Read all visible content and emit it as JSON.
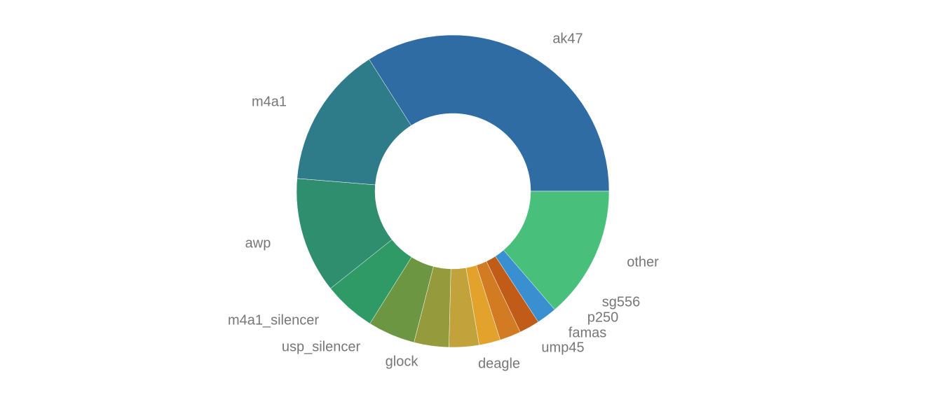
{
  "chart_data": {
    "type": "pie",
    "categories": [
      "ak47",
      "other",
      "sg556",
      "p250",
      "famas",
      "ump45",
      "deagle",
      "glock",
      "usp_silencer",
      "m4a1_silencer",
      "awp",
      "m4a1"
    ],
    "values": [
      34.0,
      13.7,
      2.1,
      2.1,
      2.2,
      2.2,
      3.1,
      3.6,
      4.9,
      5.4,
      12.0,
      14.7
    ],
    "colors": [
      "#2e6ca3",
      "#48c07c",
      "#3a8fd0",
      "#c05c18",
      "#d27b22",
      "#e3a22b",
      "#c2a23a",
      "#959a3c",
      "#6c9642",
      "#2f9a66",
      "#2e8e6e",
      "#2e7c8a"
    ],
    "hole": true
  }
}
